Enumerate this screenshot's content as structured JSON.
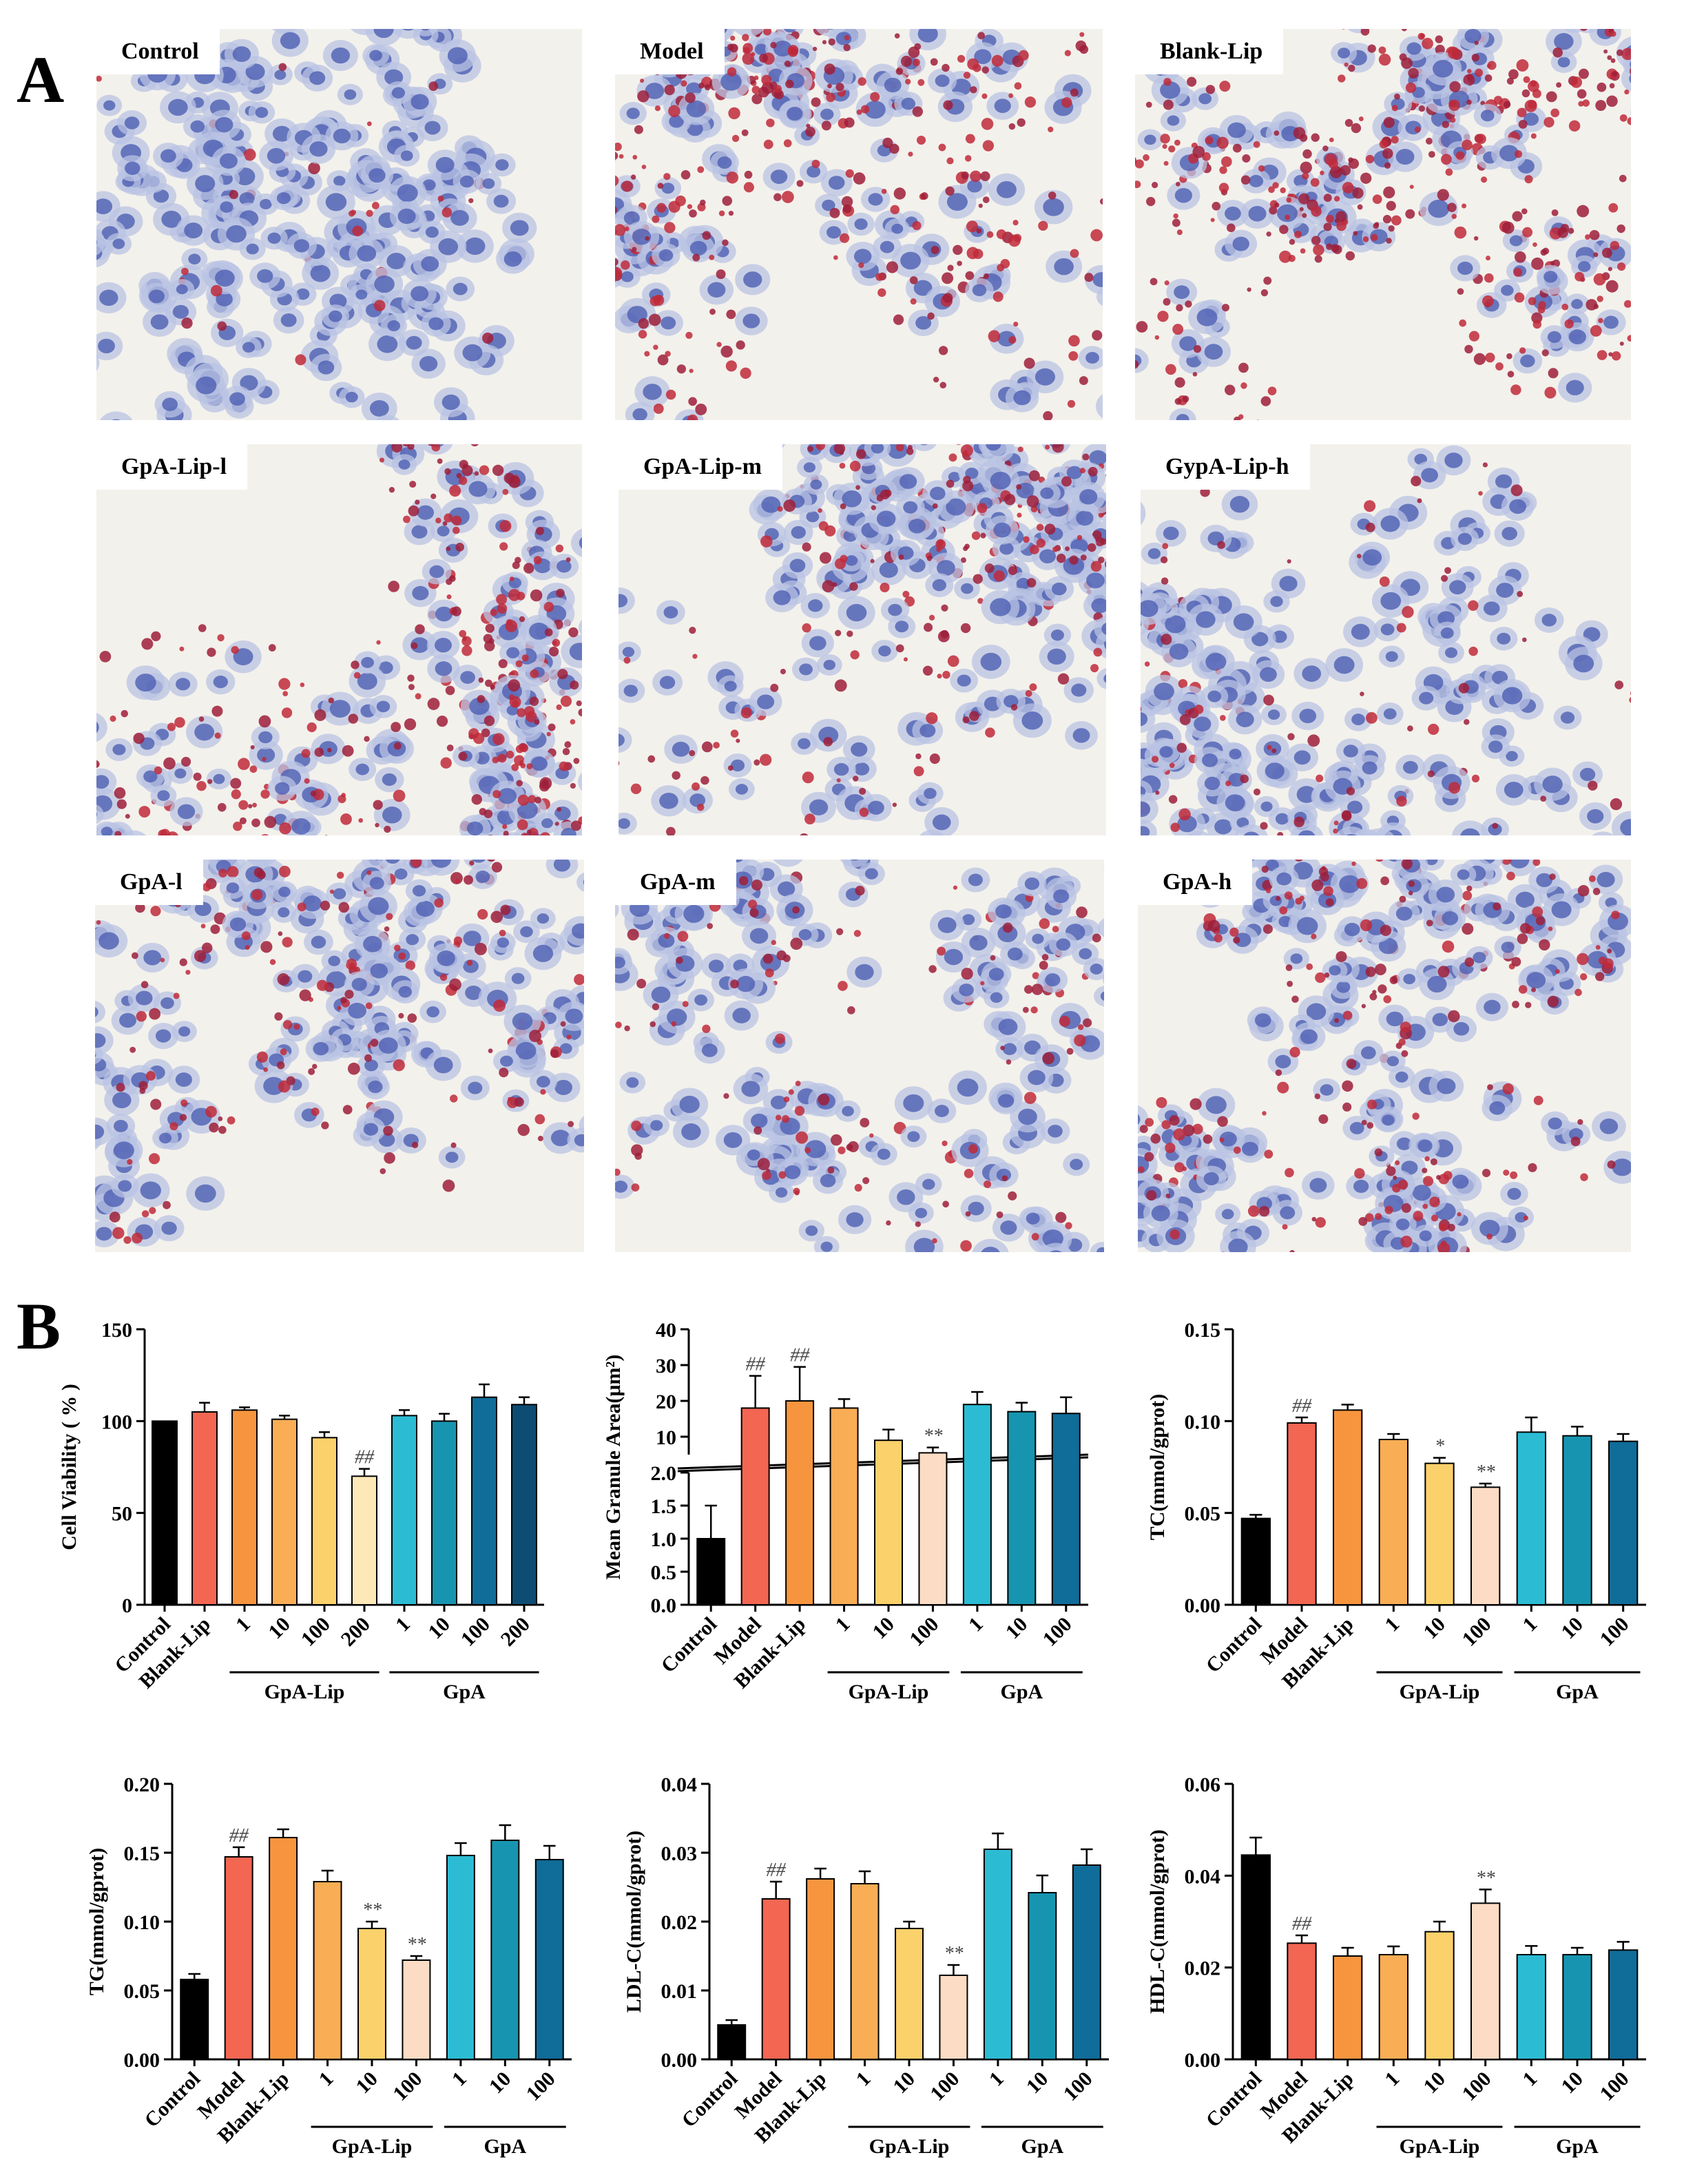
{
  "panel_labels": {
    "a": "A",
    "b": "B"
  },
  "micrographs": [
    {
      "label": "Control",
      "red_density": 0.05,
      "blue_density": 0.8
    },
    {
      "label": "Model",
      "red_density": 0.75,
      "blue_density": 0.55
    },
    {
      "label": "Blank-Lip",
      "red_density": 0.8,
      "blue_density": 0.45
    },
    {
      "label": "GpA-Lip-l",
      "red_density": 0.7,
      "blue_density": 0.5
    },
    {
      "label": "GpA-Lip-m",
      "red_density": 0.45,
      "blue_density": 0.65
    },
    {
      "label": "GypA-Lip-h",
      "red_density": 0.2,
      "blue_density": 0.7
    },
    {
      "label": "GpA-l",
      "red_density": 0.35,
      "blue_density": 0.7
    },
    {
      "label": "GpA-m",
      "red_density": 0.3,
      "blue_density": 0.7
    },
    {
      "label": "GpA-h",
      "red_density": 0.45,
      "blue_density": 0.75
    }
  ],
  "colors": {
    "black": "#000000",
    "model": "#f26652",
    "blank": "#f7953f",
    "lip1": "#f9ad55",
    "lip2": "#fbd16b",
    "lip3": "#fcdcc4",
    "lip3b": "#fde8b8",
    "gpa1": "#2bbcd4",
    "gpa2": "#1795b0",
    "gpa3": "#106c98",
    "gpa4": "#0d4d73"
  },
  "chart_data": [
    {
      "id": "viability",
      "type": "bar",
      "ylabel": "Cell Viability ( % )",
      "ylim": [
        0,
        150
      ],
      "yticks": [
        "0",
        "50",
        "100",
        "150"
      ],
      "categories": [
        "Control",
        "Blank-Lip",
        "1",
        "10",
        "100",
        "200",
        "1",
        "10",
        "100",
        "200"
      ],
      "values": [
        100,
        105,
        106,
        101,
        91,
        70,
        103,
        100,
        113,
        109
      ],
      "errors": [
        0,
        5,
        1.5,
        2,
        3,
        4,
        3,
        4,
        7,
        4
      ],
      "colors": [
        "black",
        "model",
        "blank",
        "lip1",
        "lip2",
        "lip3b",
        "gpa1",
        "gpa2",
        "gpa3",
        "gpa4"
      ],
      "annotations": [
        "",
        "",
        "",
        "",
        "",
        "##",
        "",
        "",
        "",
        ""
      ],
      "groups": [
        {
          "label": "GpA-Lip",
          "from": 2,
          "to": 5
        },
        {
          "label": "GpA",
          "from": 6,
          "to": 9
        }
      ]
    },
    {
      "id": "granule",
      "type": "bar",
      "ylabel": "Mean Granule Area(μm²)",
      "broken_axis": true,
      "ylim_low": [
        0,
        2
      ],
      "ylim_high": [
        5,
        40
      ],
      "yticks_low": [
        "0.0",
        "0.5",
        "1.0",
        "1.5",
        "2.0"
      ],
      "yticks_high": [
        "10",
        "20",
        "30",
        "40"
      ],
      "categories": [
        "Control",
        "Model",
        "Blank-Lip",
        "1",
        "10",
        "100",
        "1",
        "10",
        "100"
      ],
      "values": [
        1.0,
        18,
        20,
        18,
        9,
        5.5,
        19,
        17,
        16.5
      ],
      "errors": [
        0.5,
        9,
        9.5,
        2.5,
        3,
        1.5,
        3.5,
        2.5,
        4.5
      ],
      "colors": [
        "black",
        "model",
        "blank",
        "lip1",
        "lip2",
        "lip3",
        "gpa1",
        "gpa2",
        "gpa3"
      ],
      "annotations": [
        "",
        "##",
        "##",
        "",
        "",
        "**",
        "",
        "",
        ""
      ],
      "groups": [
        {
          "label": "GpA-Lip",
          "from": 3,
          "to": 5
        },
        {
          "label": "GpA",
          "from": 6,
          "to": 8
        }
      ]
    },
    {
      "id": "tc",
      "type": "bar",
      "ylabel": "TC(mmol/gprot)",
      "ylim": [
        0,
        0.15
      ],
      "yticks": [
        "0.00",
        "0.05",
        "0.10",
        "0.15"
      ],
      "categories": [
        "Control",
        "Model",
        "Blank-Lip",
        "1",
        "10",
        "100",
        "1",
        "10",
        "100"
      ],
      "values": [
        0.047,
        0.099,
        0.106,
        0.09,
        0.077,
        0.064,
        0.094,
        0.092,
        0.089
      ],
      "errors": [
        0.002,
        0.003,
        0.003,
        0.003,
        0.003,
        0.002,
        0.008,
        0.005,
        0.004
      ],
      "colors": [
        "black",
        "model",
        "blank",
        "lip1",
        "lip2",
        "lip3",
        "gpa1",
        "gpa2",
        "gpa3"
      ],
      "annotations": [
        "",
        "##",
        "",
        "",
        "*",
        "**",
        "",
        "",
        ""
      ],
      "groups": [
        {
          "label": "GpA-Lip",
          "from": 3,
          "to": 5
        },
        {
          "label": "GpA",
          "from": 6,
          "to": 8
        }
      ]
    },
    {
      "id": "tg",
      "type": "bar",
      "ylabel": "TG(mmol/gprot)",
      "ylim": [
        0,
        0.2
      ],
      "yticks": [
        "0.00",
        "0.05",
        "0.10",
        "0.15",
        "0.20"
      ],
      "categories": [
        "Control",
        "Model",
        "Blank-Lip",
        "1",
        "10",
        "100",
        "1",
        "10",
        "100"
      ],
      "values": [
        0.058,
        0.147,
        0.161,
        0.129,
        0.095,
        0.072,
        0.148,
        0.159,
        0.145
      ],
      "errors": [
        0.004,
        0.007,
        0.006,
        0.008,
        0.005,
        0.003,
        0.009,
        0.011,
        0.01
      ],
      "colors": [
        "black",
        "model",
        "blank",
        "lip1",
        "lip2",
        "lip3",
        "gpa1",
        "gpa2",
        "gpa3"
      ],
      "annotations": [
        "",
        "##",
        "",
        "",
        "**",
        "**",
        "",
        "",
        ""
      ],
      "groups": [
        {
          "label": "GpA-Lip",
          "from": 3,
          "to": 5
        },
        {
          "label": "GpA",
          "from": 6,
          "to": 8
        }
      ]
    },
    {
      "id": "ldl",
      "type": "bar",
      "ylabel": "LDL-C(mmol/gprot)",
      "ylim": [
        0,
        0.04
      ],
      "yticks": [
        "0.00",
        "0.01",
        "0.02",
        "0.03",
        "0.04"
      ],
      "categories": [
        "Control",
        "Model",
        "Blank-Lip",
        "1",
        "10",
        "100",
        "1",
        "10",
        "100"
      ],
      "values": [
        0.005,
        0.0233,
        0.0262,
        0.0255,
        0.019,
        0.0122,
        0.0305,
        0.0242,
        0.0282
      ],
      "errors": [
        0.0007,
        0.0025,
        0.0015,
        0.0018,
        0.001,
        0.0015,
        0.0023,
        0.0025,
        0.0023
      ],
      "colors": [
        "black",
        "model",
        "blank",
        "lip1",
        "lip2",
        "lip3",
        "gpa1",
        "gpa2",
        "gpa3"
      ],
      "annotations": [
        "",
        "##",
        "",
        "",
        "",
        "**",
        "",
        "",
        ""
      ],
      "groups": [
        {
          "label": "GpA-Lip",
          "from": 3,
          "to": 5
        },
        {
          "label": "GpA",
          "from": 6,
          "to": 8
        }
      ]
    },
    {
      "id": "hdl",
      "type": "bar",
      "ylabel": "HDL-C(mmol/gprot)",
      "ylim": [
        0,
        0.06
      ],
      "yticks": [
        "0.00",
        "0.02",
        "0.04",
        "0.06"
      ],
      "categories": [
        "Control",
        "Model",
        "Blank-Lip",
        "1",
        "10",
        "100",
        "1",
        "10",
        "100"
      ],
      "values": [
        0.0445,
        0.0253,
        0.0225,
        0.0228,
        0.0278,
        0.034,
        0.0228,
        0.0228,
        0.0238
      ],
      "errors": [
        0.0038,
        0.0017,
        0.0018,
        0.0018,
        0.0022,
        0.003,
        0.0019,
        0.0015,
        0.0018
      ],
      "colors": [
        "black",
        "model",
        "blank",
        "lip1",
        "lip2",
        "lip3",
        "gpa1",
        "gpa2",
        "gpa3"
      ],
      "annotations": [
        "",
        "##",
        "",
        "",
        "",
        "**",
        "",
        "",
        ""
      ],
      "groups": [
        {
          "label": "GpA-Lip",
          "from": 3,
          "to": 5
        },
        {
          "label": "GpA",
          "from": 6,
          "to": 8
        }
      ]
    }
  ]
}
